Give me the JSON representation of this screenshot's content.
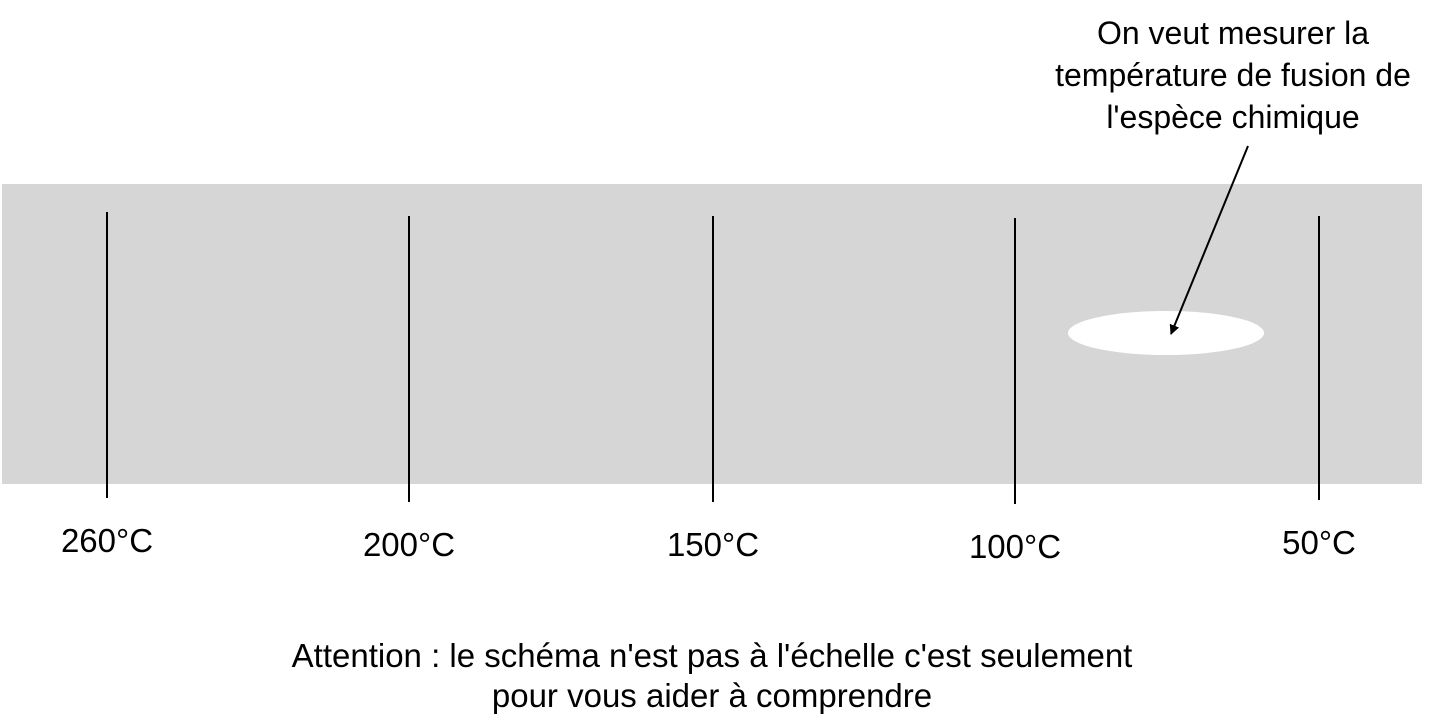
{
  "colors": {
    "plate": "#d6d6d6",
    "sample": "#ffffff",
    "line": "#000000",
    "text": "#000000"
  },
  "scale": {
    "labels": [
      "260°C",
      "200°C",
      "150°C",
      "100°C",
      "50°C"
    ]
  },
  "annotation": {
    "lines": [
      "On veut mesurer la",
      "température de fusion de",
      "l'espèce chimique"
    ]
  },
  "note": {
    "lines": [
      "Attention : le schéma n'est pas à l'échelle c'est seulement",
      "pour vous aider à comprendre"
    ]
  }
}
